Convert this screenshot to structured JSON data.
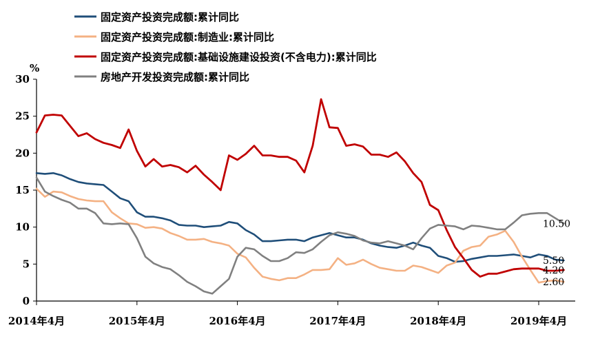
{
  "chart_data": {
    "type": "line",
    "ylabel": "%",
    "ylim": [
      0,
      30
    ],
    "yticks": [
      "0",
      "5",
      "10",
      "15",
      "20",
      "25",
      "30"
    ],
    "xlim": [
      0,
      64
    ],
    "xticks": [
      {
        "label": "2014年4月",
        "x": 0
      },
      {
        "label": "2015年4月",
        "x": 12
      },
      {
        "label": "2016年4月",
        "x": 24
      },
      {
        "label": "2017年4月",
        "x": 36
      },
      {
        "label": "2018年4月",
        "x": 48
      },
      {
        "label": "2019年4月",
        "x": 60
      }
    ],
    "grid": false,
    "legend": "top-left",
    "series": [
      {
        "name": "固定资产投资完成额:累计同比",
        "color": "#1F4E79",
        "values": [
          17.3,
          17.2,
          17.3,
          17.0,
          16.5,
          16.1,
          15.9,
          15.8,
          15.7,
          14.8,
          13.9,
          13.5,
          12.0,
          11.4,
          11.4,
          11.2,
          10.9,
          10.3,
          10.2,
          10.2,
          10.0,
          10.1,
          10.2,
          10.7,
          10.5,
          9.6,
          9.0,
          8.1,
          8.1,
          8.2,
          8.3,
          8.3,
          8.1,
          8.6,
          8.9,
          9.2,
          8.9,
          8.6,
          8.6,
          8.3,
          7.8,
          7.5,
          7.3,
          7.2,
          7.5,
          7.9,
          7.5,
          7.2,
          6.1,
          5.8,
          5.3,
          5.4,
          5.7,
          5.9,
          6.1,
          6.1,
          6.2,
          6.3,
          6.1,
          5.9,
          6.3,
          6.1,
          5.6,
          5.5
        ]
      },
      {
        "name": "固定资产投资完成额:制造业:累计同比",
        "color": "#F4B183",
        "values": [
          15.2,
          14.1,
          14.8,
          14.7,
          14.2,
          13.8,
          13.6,
          13.5,
          13.5,
          12.0,
          11.2,
          10.5,
          10.4,
          9.9,
          10.0,
          9.8,
          9.2,
          8.8,
          8.3,
          8.3,
          8.4,
          8.0,
          7.8,
          7.5,
          6.4,
          5.9,
          4.5,
          3.3,
          3.0,
          2.8,
          3.1,
          3.1,
          3.6,
          4.2,
          4.2,
          4.3,
          5.8,
          4.9,
          5.1,
          5.6,
          5.0,
          4.5,
          4.3,
          4.1,
          4.1,
          4.8,
          4.6,
          4.2,
          3.8,
          4.8,
          5.2,
          6.8,
          7.3,
          7.5,
          8.7,
          9.0,
          9.5,
          8.0,
          6.0,
          4.2,
          2.5,
          2.7,
          2.8,
          2.6
        ]
      },
      {
        "name": "固定资产投资完成额:基础设施建设投资(不含电力):累计同比",
        "color": "#C00000",
        "values": [
          22.8,
          25.1,
          25.2,
          25.1,
          23.7,
          22.3,
          22.7,
          21.9,
          21.4,
          21.1,
          20.7,
          23.2,
          20.3,
          18.2,
          19.2,
          18.2,
          18.4,
          18.1,
          17.4,
          18.3,
          17.1,
          16.1,
          15.0,
          19.7,
          19.1,
          19.9,
          21.0,
          19.7,
          19.7,
          19.5,
          19.5,
          19.0,
          17.4,
          21.0,
          27.3,
          23.5,
          23.4,
          21.0,
          21.2,
          20.9,
          19.8,
          19.8,
          19.5,
          20.1,
          18.9,
          17.3,
          16.1,
          13.0,
          12.3,
          9.6,
          7.3,
          5.8,
          4.2,
          3.3,
          3.7,
          3.7,
          4.0,
          4.3,
          4.4,
          4.4,
          4.4,
          4.1,
          4.1,
          4.2
        ]
      },
      {
        "name": "房地产开发投资完成额:累计同比",
        "color": "#808080",
        "values": [
          16.7,
          14.8,
          14.2,
          13.7,
          13.3,
          12.5,
          12.5,
          11.9,
          10.5,
          10.4,
          10.5,
          10.4,
          8.5,
          6.0,
          5.1,
          4.6,
          4.3,
          3.5,
          2.6,
          2.0,
          1.3,
          1.0,
          2.0,
          3.0,
          6.0,
          7.2,
          7.0,
          6.1,
          5.4,
          5.4,
          5.8,
          6.6,
          6.5,
          7.0,
          8.0,
          8.9,
          9.3,
          9.1,
          8.8,
          8.2,
          7.9,
          7.8,
          8.1,
          7.8,
          7.5,
          7.0,
          8.5,
          9.8,
          10.3,
          10.2,
          10.1,
          9.7,
          10.2,
          10.1,
          9.9,
          9.7,
          9.7,
          10.6,
          11.6,
          11.8,
          11.9,
          11.9,
          11.2,
          10.5
        ]
      }
    ],
    "annotations": [
      {
        "text": "10.50",
        "series": 3
      },
      {
        "text": "5.50",
        "series": 0
      },
      {
        "text": "4.20",
        "series": 2
      },
      {
        "text": "2.60",
        "series": 1
      }
    ]
  }
}
